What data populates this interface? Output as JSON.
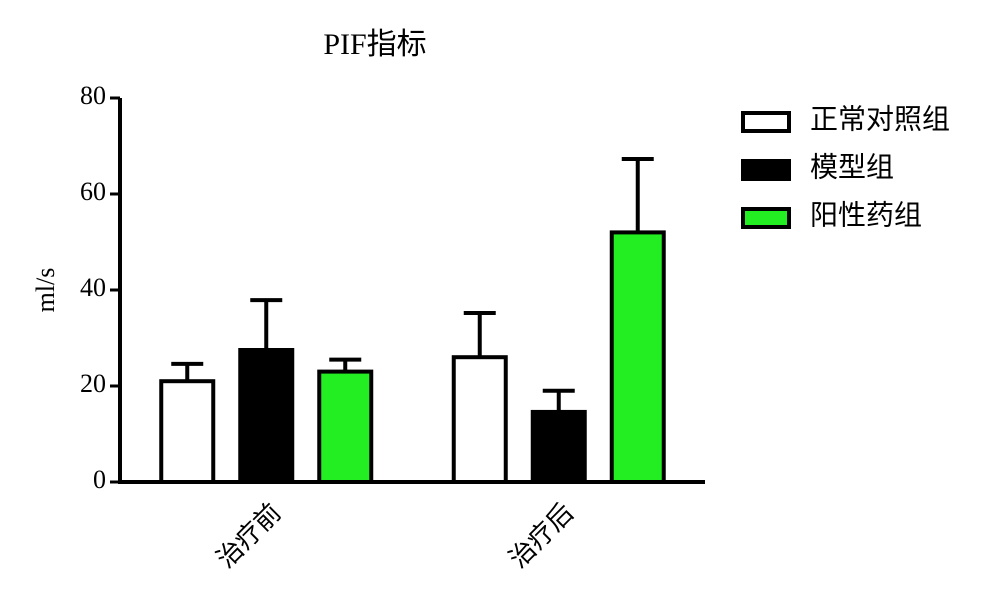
{
  "chart_data": {
    "type": "bar",
    "title": "PIF指标",
    "y_label": "ml/s",
    "categories": [
      "治疗前",
      "治疗后"
    ],
    "series": [
      {
        "name": "正常对照组",
        "color": "#ffffff",
        "values": [
          21,
          26
        ],
        "errors": [
          3.6,
          9.2
        ]
      },
      {
        "name": "模型组",
        "color": "#000000",
        "values": [
          27.5,
          14.6
        ],
        "errors": [
          10.4,
          4.4
        ]
      },
      {
        "name": "阳性药组",
        "color": "#22ee22",
        "values": [
          23,
          52
        ],
        "errors": [
          2.5,
          15.3
        ]
      }
    ],
    "ylim": [
      0,
      80
    ],
    "yticks": [
      0,
      20,
      40,
      60,
      80
    ],
    "grid": false,
    "legend": "right"
  }
}
